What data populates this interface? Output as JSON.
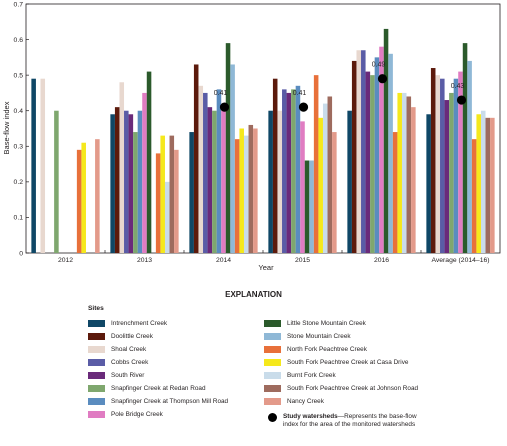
{
  "chart_data": {
    "type": "bar",
    "xlabel": "Year",
    "ylabel": "Base-flow index",
    "ylim": [
      0,
      0.7
    ],
    "yticks": [
      "0",
      "0.1",
      "0.2",
      "0.3",
      "0.4",
      "0.5",
      "0.6",
      "0.7"
    ],
    "categories": [
      "2012",
      "2013",
      "2014",
      "2015",
      "2016",
      "Average (2014–16)"
    ],
    "series": [
      {
        "name": "Intrenchment Creek",
        "color": "#0f4766",
        "values": [
          0.49,
          0.39,
          0.34,
          0.4,
          0.4,
          0.39
        ]
      },
      {
        "name": "Doolittle Creek",
        "color": "#5c1a0c",
        "values": [
          null,
          0.41,
          0.53,
          0.49,
          0.54,
          0.52
        ]
      },
      {
        "name": "Shoal Creek",
        "color": "#e8d8cf",
        "values": [
          0.49,
          0.48,
          0.47,
          0.4,
          0.57,
          0.5
        ]
      },
      {
        "name": "Cobbs Creek",
        "color": "#5a5ca6",
        "values": [
          null,
          0.4,
          0.45,
          0.46,
          0.57,
          0.49
        ]
      },
      {
        "name": "South River",
        "color": "#6a2a7a",
        "values": [
          null,
          0.39,
          0.41,
          0.45,
          0.51,
          0.43
        ]
      },
      {
        "name": "Snapfinger Creek at Redan Road",
        "color": "#7fa76e",
        "values": [
          0.4,
          0.34,
          0.4,
          0.46,
          0.5,
          0.45
        ]
      },
      {
        "name": "Snapfinger Creek at Thompson Mill Road",
        "color": "#5a8cbf",
        "values": [
          null,
          0.4,
          0.46,
          0.47,
          0.55,
          0.49
        ]
      },
      {
        "name": "Pole Bridge Creek",
        "color": "#e07cc2",
        "values": [
          null,
          0.45,
          0.41,
          0.37,
          0.58,
          0.51
        ]
      },
      {
        "name": "Little Stone Mountain Creek",
        "color": "#2b5a2b",
        "values": [
          null,
          0.51,
          0.59,
          0.26,
          0.63,
          0.59
        ]
      },
      {
        "name": "Stone Mountain Creek",
        "color": "#8fb8d6",
        "values": [
          null,
          null,
          0.53,
          0.26,
          0.56,
          0.54
        ]
      },
      {
        "name": "North Fork Peachtree Creek",
        "color": "#e8703a",
        "values": [
          0.29,
          0.28,
          0.32,
          0.5,
          0.34,
          0.32
        ]
      },
      {
        "name": "South Fork Peachtree Creek at Casa Drive",
        "color": "#f5e81c",
        "values": [
          0.31,
          0.33,
          0.35,
          0.38,
          0.45,
          0.39
        ]
      },
      {
        "name": "Burnt Fork Creek",
        "color": "#c9dcea",
        "values": [
          null,
          0.2,
          0.33,
          0.42,
          0.45,
          0.4
        ]
      },
      {
        "name": "South Fork Peachtree Creek at Johnson Road",
        "color": "#9e6b5e",
        "values": [
          null,
          0.33,
          0.36,
          0.44,
          0.44,
          0.38
        ]
      },
      {
        "name": "Nancy Creek",
        "color": "#e39a8a",
        "values": [
          0.32,
          0.29,
          0.35,
          0.34,
          0.41,
          0.38
        ]
      }
    ],
    "study_watersheds": {
      "name": "Study watersheds",
      "values": [
        null,
        null,
        0.41,
        0.41,
        0.49,
        0.43
      ],
      "labels": [
        null,
        null,
        "0.41",
        "0.41",
        "0.49",
        "0.43"
      ]
    },
    "grid": false
  },
  "legend": {
    "title": "EXPLANATION",
    "sites_label": "Sites",
    "study_label": "Study watersheds",
    "study_desc": "—Represents the base-flow index for the area of the monitored watersheds"
  }
}
